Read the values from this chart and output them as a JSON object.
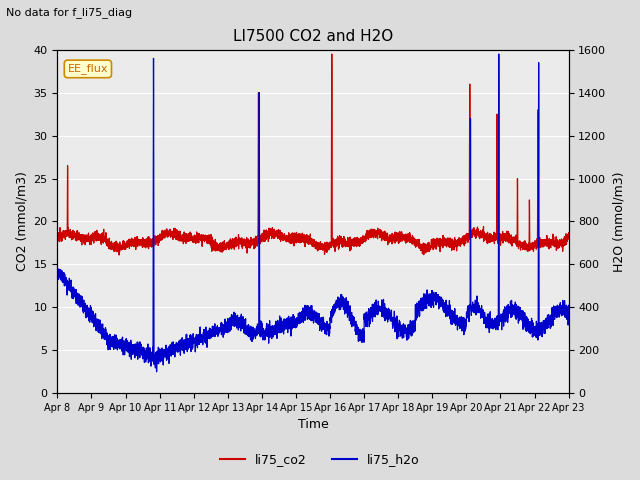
{
  "title": "LI7500 CO2 and H2O",
  "subtitle": "No data for f_li75_diag",
  "xlabel": "Time",
  "ylabel_left": "CO2 (mmol/m3)",
  "ylabel_right": "H2O (mmol/m3)",
  "ylim_left": [
    0,
    40
  ],
  "ylim_right": [
    0,
    1600
  ],
  "legend_label1": "li75_co2",
  "legend_label2": "li75_h2o",
  "box_label": "EE_flux",
  "xtick_labels": [
    "Apr 8",
    "Apr 9",
    "Apr 10",
    "Apr 11",
    "Apr 12",
    "Apr 13",
    "Apr 14",
    "Apr 15",
    "Apr 16",
    "Apr 17",
    "Apr 18",
    "Apr 19",
    "Apr 20",
    "Apr 21",
    "Apr 22",
    "Apr 23"
  ],
  "co2_color": "#cc0000",
  "h2o_color": "#0000cc",
  "bg_color": "#dcdcdc",
  "plot_area_color": "#ebebeb"
}
